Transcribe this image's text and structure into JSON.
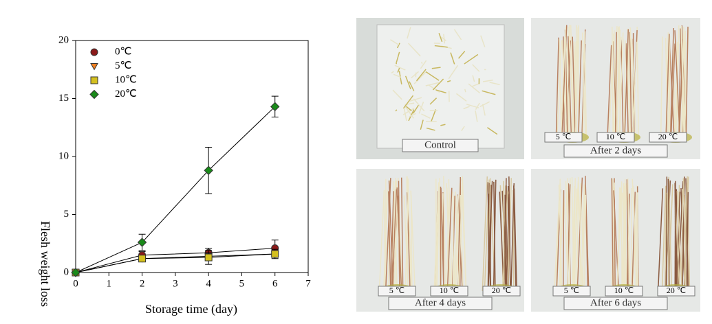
{
  "chart_data": {
    "type": "line",
    "xlabel": "Storage time (day)",
    "ylabel": "Flesh weight loss",
    "x": [
      0,
      2,
      4,
      6
    ],
    "series": [
      {
        "name": "0℃",
        "color": "#8b1a1a",
        "marker": "circle",
        "values": [
          0,
          1.5,
          1.7,
          2.1
        ],
        "errors": [
          0,
          0.3,
          0.4,
          0.7
        ]
      },
      {
        "name": "5℃",
        "color": "#f08020",
        "marker": "triangle-down",
        "values": [
          0,
          1.2,
          1.4,
          1.6
        ],
        "errors": [
          0,
          0.2,
          0.3,
          0.3
        ]
      },
      {
        "name": "10℃",
        "color": "#d4c020",
        "marker": "square",
        "values": [
          0,
          1.2,
          1.3,
          1.6
        ],
        "errors": [
          0,
          0.2,
          0.6,
          0.4
        ]
      },
      {
        "name": "20℃",
        "color": "#1a8a1a",
        "marker": "diamond",
        "values": [
          0,
          2.6,
          8.8,
          14.3
        ],
        "errors": [
          0,
          0.7,
          2.0,
          0.9
        ]
      }
    ],
    "xlim": [
      0,
      7
    ],
    "xticks": [
      0,
      1,
      2,
      3,
      4,
      5,
      6,
      7
    ],
    "ylim": [
      0,
      20
    ],
    "yticks": [
      0,
      5,
      10,
      15,
      20
    ],
    "legend": "upper left",
    "line_color": "#000000"
  },
  "photos": [
    {
      "label": "Control",
      "tags": []
    },
    {
      "label": "After 2 days",
      "tags": [
        "5 ℃",
        "10 ℃",
        "20 ℃"
      ]
    },
    {
      "label": "After 4 days",
      "tags": [
        "5 ℃",
        "10 ℃",
        "20 ℃"
      ]
    },
    {
      "label": "After 6 days",
      "tags": [
        "5 ℃",
        "10 ℃",
        "20 ℃"
      ]
    }
  ]
}
